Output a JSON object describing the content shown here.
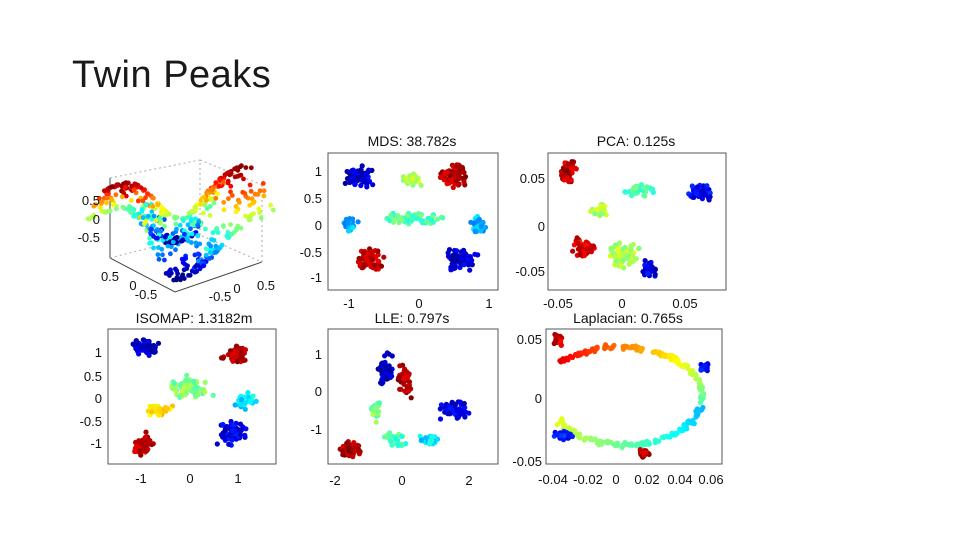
{
  "slide": {
    "title": "Twin Peaks"
  },
  "figure": {
    "panels": [
      {
        "id": "surface",
        "title": "",
        "z_ticks": [
          "0.5",
          "0",
          "-0.5"
        ],
        "x_ticks": [
          "0.5",
          "0",
          "-0.5"
        ],
        "y_ticks": [
          "-0.5",
          "0",
          "0.5"
        ]
      },
      {
        "id": "mds",
        "title": "MDS: 38.782s",
        "x_ticks": [
          "-1",
          "0",
          "1"
        ],
        "y_ticks": [
          "1",
          "0.5",
          "0",
          "-0.5",
          "-1"
        ]
      },
      {
        "id": "pca",
        "title": "PCA: 0.125s",
        "x_ticks": [
          "-0.05",
          "0",
          "0.05"
        ],
        "y_ticks": [
          "0.05",
          "0",
          "-0.05"
        ]
      },
      {
        "id": "isomap",
        "title": "ISOMAP: 1.3182m",
        "x_ticks": [
          "-1",
          "0",
          "1"
        ],
        "y_ticks": [
          "1",
          "0.5",
          "0",
          "-0.5",
          "-1"
        ]
      },
      {
        "id": "lle",
        "title": "LLE: 0.797s",
        "x_ticks": [
          "-2",
          "0",
          "2"
        ],
        "y_ticks": [
          "1",
          "0",
          "-1"
        ]
      },
      {
        "id": "laplacian",
        "title": "Laplacian: 0.765s",
        "x_ticks": [
          "-0.04",
          "-0.02",
          "0",
          "0.02",
          "0.04",
          "0.06"
        ],
        "y_ticks": [
          "0.05",
          "0",
          "-0.05"
        ]
      }
    ]
  }
}
